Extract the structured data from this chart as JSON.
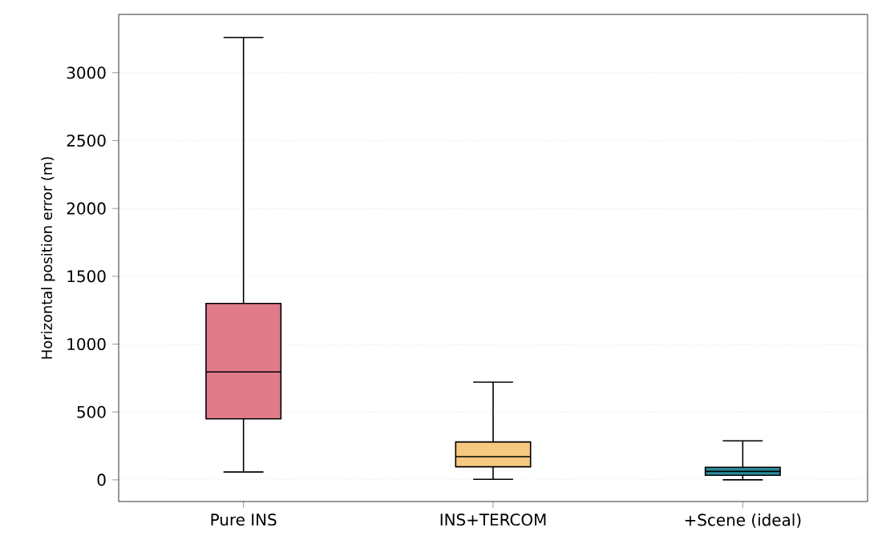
{
  "chart_data": {
    "type": "box",
    "ylabel": "Horizontal position error (m)",
    "categories": [
      "Pure INS",
      "INS+TERCOM",
      "+Scene (ideal)"
    ],
    "colors": [
      "#e07b8a",
      "#f6c97e",
      "#2a8c9b"
    ],
    "boxes": [
      {
        "low": 58,
        "q1": 450,
        "median": 795,
        "q3": 1300,
        "high": 3260
      },
      {
        "low": 4,
        "q1": 96,
        "median": 171,
        "q3": 279,
        "high": 720
      },
      {
        "low": 0,
        "q1": 33,
        "median": 62,
        "q3": 92,
        "high": 287
      }
    ],
    "ylim": [
      -160,
      3430
    ],
    "yticks": [
      0,
      500,
      1000,
      1500,
      2000,
      2500,
      3000
    ],
    "grid": "y"
  }
}
